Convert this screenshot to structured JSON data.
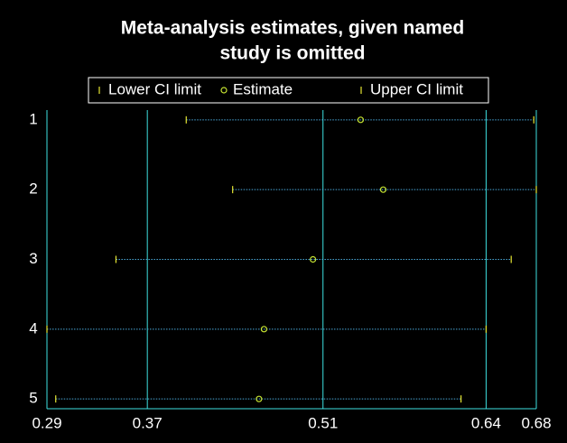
{
  "chart_data": {
    "type": "ci",
    "title": [
      "Meta-analysis estimates, given named",
      "study is omitted"
    ],
    "categories": [
      "1",
      "2",
      "3",
      "4",
      "5"
    ],
    "series": [
      {
        "name": "Lower CI limit",
        "color": "#e6e632",
        "values": [
          0.401,
          0.438,
          0.345,
          0.29,
          0.297
        ]
      },
      {
        "name": "Estimate",
        "color": "#c8e632",
        "values": [
          0.54,
          0.558,
          0.502,
          0.463,
          0.459
        ]
      },
      {
        "name": "Upper CI limit",
        "color": "#e6e632",
        "values": [
          0.678,
          0.68,
          0.66,
          0.64,
          0.62
        ]
      }
    ],
    "xlim": [
      0.29,
      0.68
    ],
    "xticks": [
      0.29,
      0.37,
      0.51,
      0.64,
      0.68
    ],
    "grid": true
  }
}
